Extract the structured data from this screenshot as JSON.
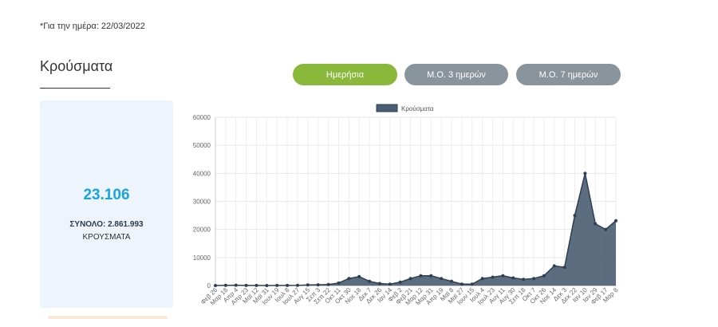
{
  "header": {
    "date_note": "*Για την ημέρα: 22/03/2022",
    "section_title": "Κρούσματα"
  },
  "tabs": [
    {
      "label": "Ημερήσια",
      "active": true
    },
    {
      "label": "Μ.Ο. 3 ημερών",
      "active": false
    },
    {
      "label": "Μ.Ο. 7 ημερών",
      "active": false
    }
  ],
  "stats": {
    "today_value": "23.106",
    "total_line": "ΣΥΝΟΛΟ: 2.861.993",
    "unit_label": "ΚΡΟΥΣΜΑΤΑ"
  },
  "colors": {
    "active_tab": "#8ab83a",
    "inactive_tab": "#8a949c",
    "value_blue": "#1aa3df",
    "series_fill": "#4b5d72",
    "series_line": "#2f3f52",
    "card_bg": "#eef4fb"
  },
  "chart_data": {
    "type": "area",
    "legend": "Κρούσματα",
    "legend_position": "top-center",
    "grid": true,
    "ylim": [
      0,
      60000
    ],
    "yticks": [
      0,
      10000,
      20000,
      30000,
      40000,
      50000,
      60000
    ],
    "xticks": [
      "Φεβ 26",
      "Μαρ 18",
      "Απρ 4",
      "Απρ 23",
      "Μαϊ 12",
      "Μαϊ 31",
      "Ιουν 19",
      "Ιουλ 8",
      "Ιουλ 27",
      "Αυγ 15",
      "Σεπ 3",
      "Σεπ 22",
      "Οκτ 11",
      "Οκτ 30",
      "Νοε 18",
      "Δεκ 7",
      "Δεκ 26",
      "Ιαν 14",
      "Φεβ 2",
      "Φεβ 21",
      "Μαρ 12",
      "Μαρ 31",
      "Απρ 19",
      "Μαϊ 8",
      "Μαϊ 27",
      "Ιουν 15",
      "Ιουλ 4",
      "Ιουλ 23",
      "Αυγ 11",
      "Αυγ 30",
      "Σεπ 18",
      "Οκτ 7",
      "Οκτ 26",
      "Νοε 14",
      "Δεκ 3",
      "Δεκ 22",
      "Ιαν 10",
      "Ιαν 29",
      "Φεβ 17",
      "Μαρ 8"
    ],
    "series": [
      {
        "name": "Κρούσματα",
        "x": [
          "Φεβ 26",
          "Μαρ 18",
          "Απρ 4",
          "Απρ 23",
          "Μαϊ 12",
          "Μαϊ 31",
          "Ιουν 19",
          "Ιουλ 8",
          "Ιουλ 27",
          "Αυγ 15",
          "Σεπ 3",
          "Σεπ 22",
          "Οκτ 11",
          "Οκτ 30",
          "Νοε 18",
          "Δεκ 7",
          "Δεκ 26",
          "Ιαν 14",
          "Φεβ 2",
          "Φεβ 21",
          "Μαρ 12",
          "Μαρ 31",
          "Απρ 19",
          "Μαϊ 8",
          "Μαϊ 27",
          "Ιουν 15",
          "Ιουλ 4",
          "Ιουλ 23",
          "Αυγ 11",
          "Αυγ 30",
          "Σεπ 18",
          "Οκτ 7",
          "Οκτ 26",
          "Νοε 14",
          "Δεκ 3",
          "Δεκ 22",
          "Ιαν 10",
          "Ιαν 29",
          "Φεβ 17",
          "Μαρ 8"
        ],
        "values": [
          0,
          60,
          100,
          50,
          20,
          10,
          20,
          30,
          60,
          200,
          250,
          350,
          900,
          2500,
          3200,
          1500,
          700,
          500,
          1200,
          2500,
          3500,
          3500,
          2500,
          1500,
          500,
          500,
          2500,
          3000,
          3500,
          2700,
          2200,
          2500,
          3500,
          7000,
          6500,
          25000,
          40000,
          22000,
          20000,
          23106
        ]
      }
    ]
  }
}
